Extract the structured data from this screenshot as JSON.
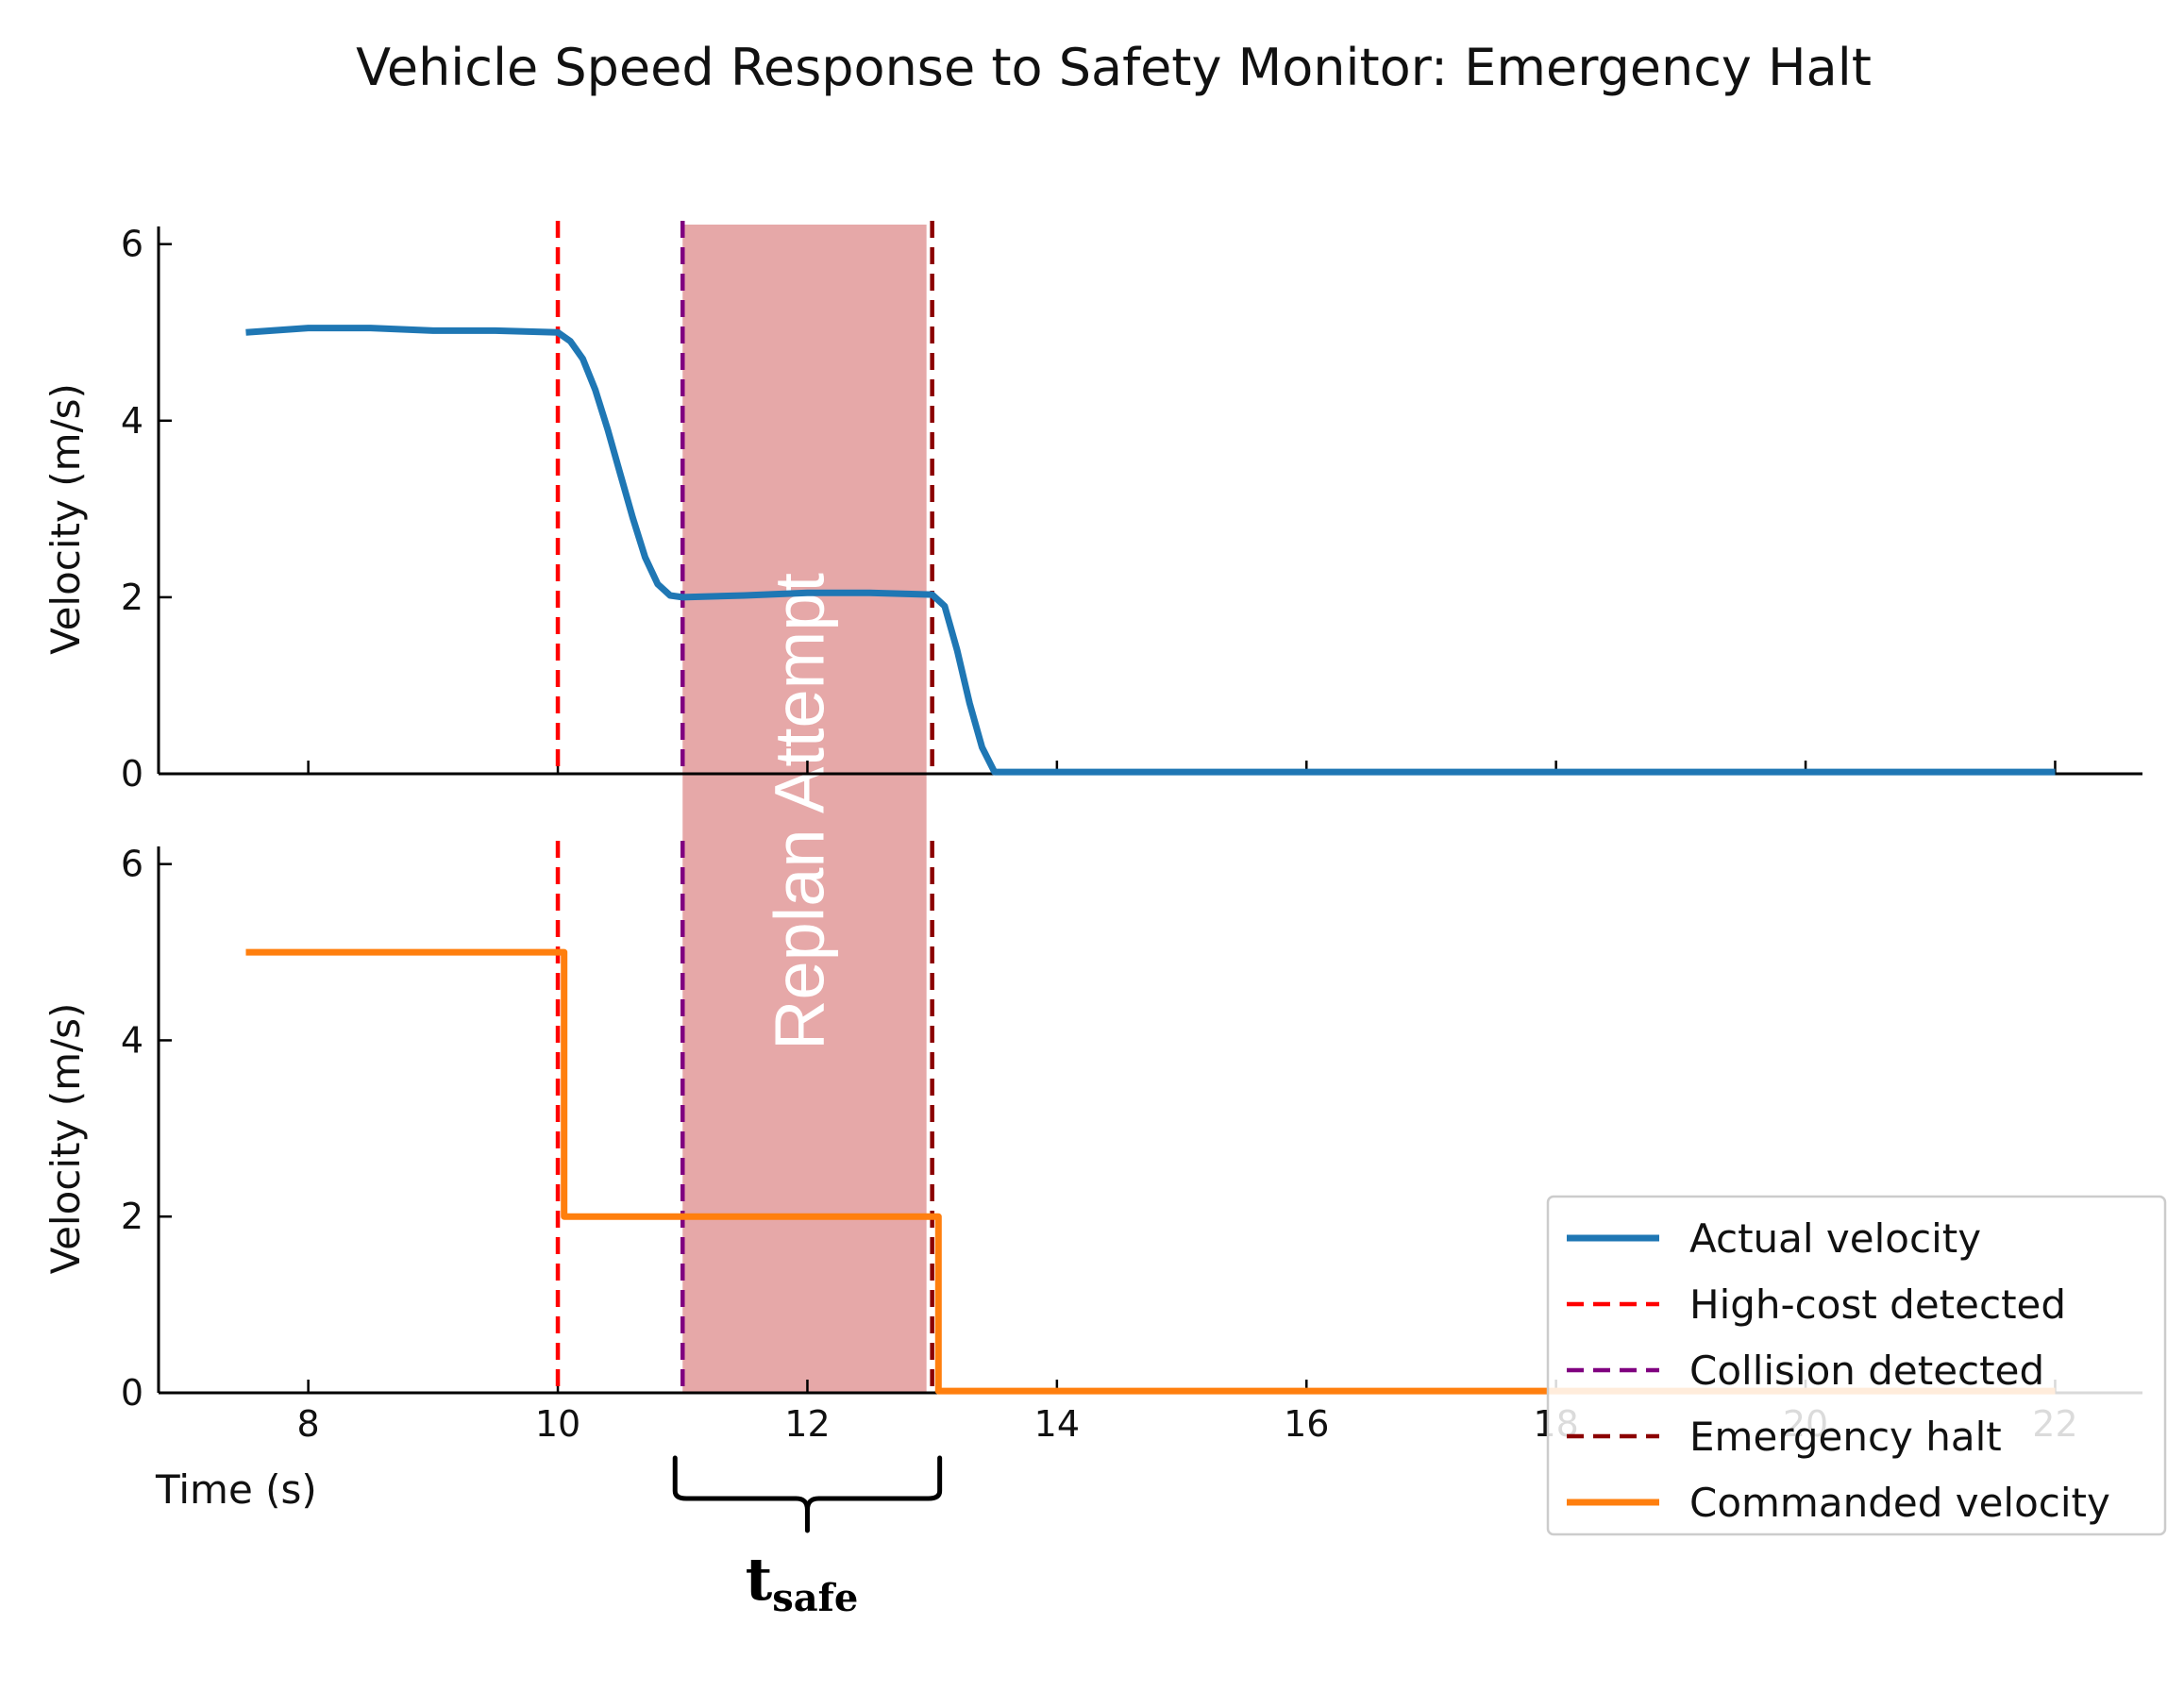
{
  "chart_data": {
    "type": "line",
    "title": "Vehicle Speed Response to Safety Monitor: Emergency Halt",
    "xlabel": "Time (s)",
    "xlim": [
      6.8,
      22.7
    ],
    "x_ticks": [
      8,
      10,
      12,
      14,
      16,
      18,
      20,
      22
    ],
    "grid": false,
    "legend_position": "lower-right",
    "shaded_region": {
      "label": "Replan Attempt",
      "x_start": 11,
      "x_end": 13,
      "color": "#e6a8a8"
    },
    "brace_annotation": {
      "x_start": 11,
      "x_end": 13,
      "label_main": "t",
      "label_sub": "safe"
    },
    "event_lines": [
      {
        "name": "High-cost detected",
        "x": 10,
        "color": "#ff0000"
      },
      {
        "name": "Collision detected",
        "x": 11,
        "color": "#800080"
      },
      {
        "name": "Emergency halt",
        "x": 13,
        "color": "#8b0000"
      }
    ],
    "panels": [
      {
        "ylabel": "Velocity (m/s)",
        "ylim": [
          0,
          6.2
        ],
        "y_ticks": [
          0,
          2,
          4,
          6
        ],
        "series": [
          {
            "name": "Actual velocity",
            "color": "#1f77b4",
            "x": [
              7.5,
              8.0,
              8.5,
              9.0,
              9.5,
              10.0,
              10.1,
              10.2,
              10.3,
              10.4,
              10.5,
              10.6,
              10.7,
              10.8,
              10.9,
              11.0,
              11.5,
              12.0,
              12.5,
              13.0,
              13.1,
              13.2,
              13.3,
              13.4,
              13.5,
              14.0,
              16.0,
              18.0,
              20.0,
              22.0
            ],
            "y": [
              5.0,
              5.05,
              5.05,
              5.02,
              5.02,
              5.0,
              4.9,
              4.7,
              4.35,
              3.9,
              3.4,
              2.9,
              2.45,
              2.15,
              2.02,
              2.0,
              2.02,
              2.05,
              2.05,
              2.03,
              1.9,
              1.4,
              0.8,
              0.3,
              0.02,
              0.02,
              0.02,
              0.02,
              0.02,
              0.02
            ]
          }
        ]
      },
      {
        "ylabel": "Velocity (m/s)",
        "ylim": [
          0,
          6.2
        ],
        "y_ticks": [
          0,
          2,
          4,
          6
        ],
        "series": [
          {
            "name": "Commanded velocity",
            "color": "#ff7f0e",
            "step": true,
            "x": [
              7.5,
              10.05,
              10.05,
              13.05,
              13.05,
              22.0
            ],
            "y": [
              5.0,
              5.0,
              2.0,
              2.0,
              0.02,
              0.02
            ]
          }
        ]
      }
    ]
  },
  "legend": {
    "items": [
      {
        "label": "Actual velocity",
        "color": "#1f77b4",
        "style": "solid"
      },
      {
        "label": "High-cost detected",
        "color": "#ff0000",
        "style": "dashed"
      },
      {
        "label": "Collision detected",
        "color": "#800080",
        "style": "dashed"
      },
      {
        "label": "Emergency halt",
        "color": "#8b0000",
        "style": "dashed"
      },
      {
        "label": "Commanded velocity",
        "color": "#ff7f0e",
        "style": "solid"
      }
    ]
  }
}
